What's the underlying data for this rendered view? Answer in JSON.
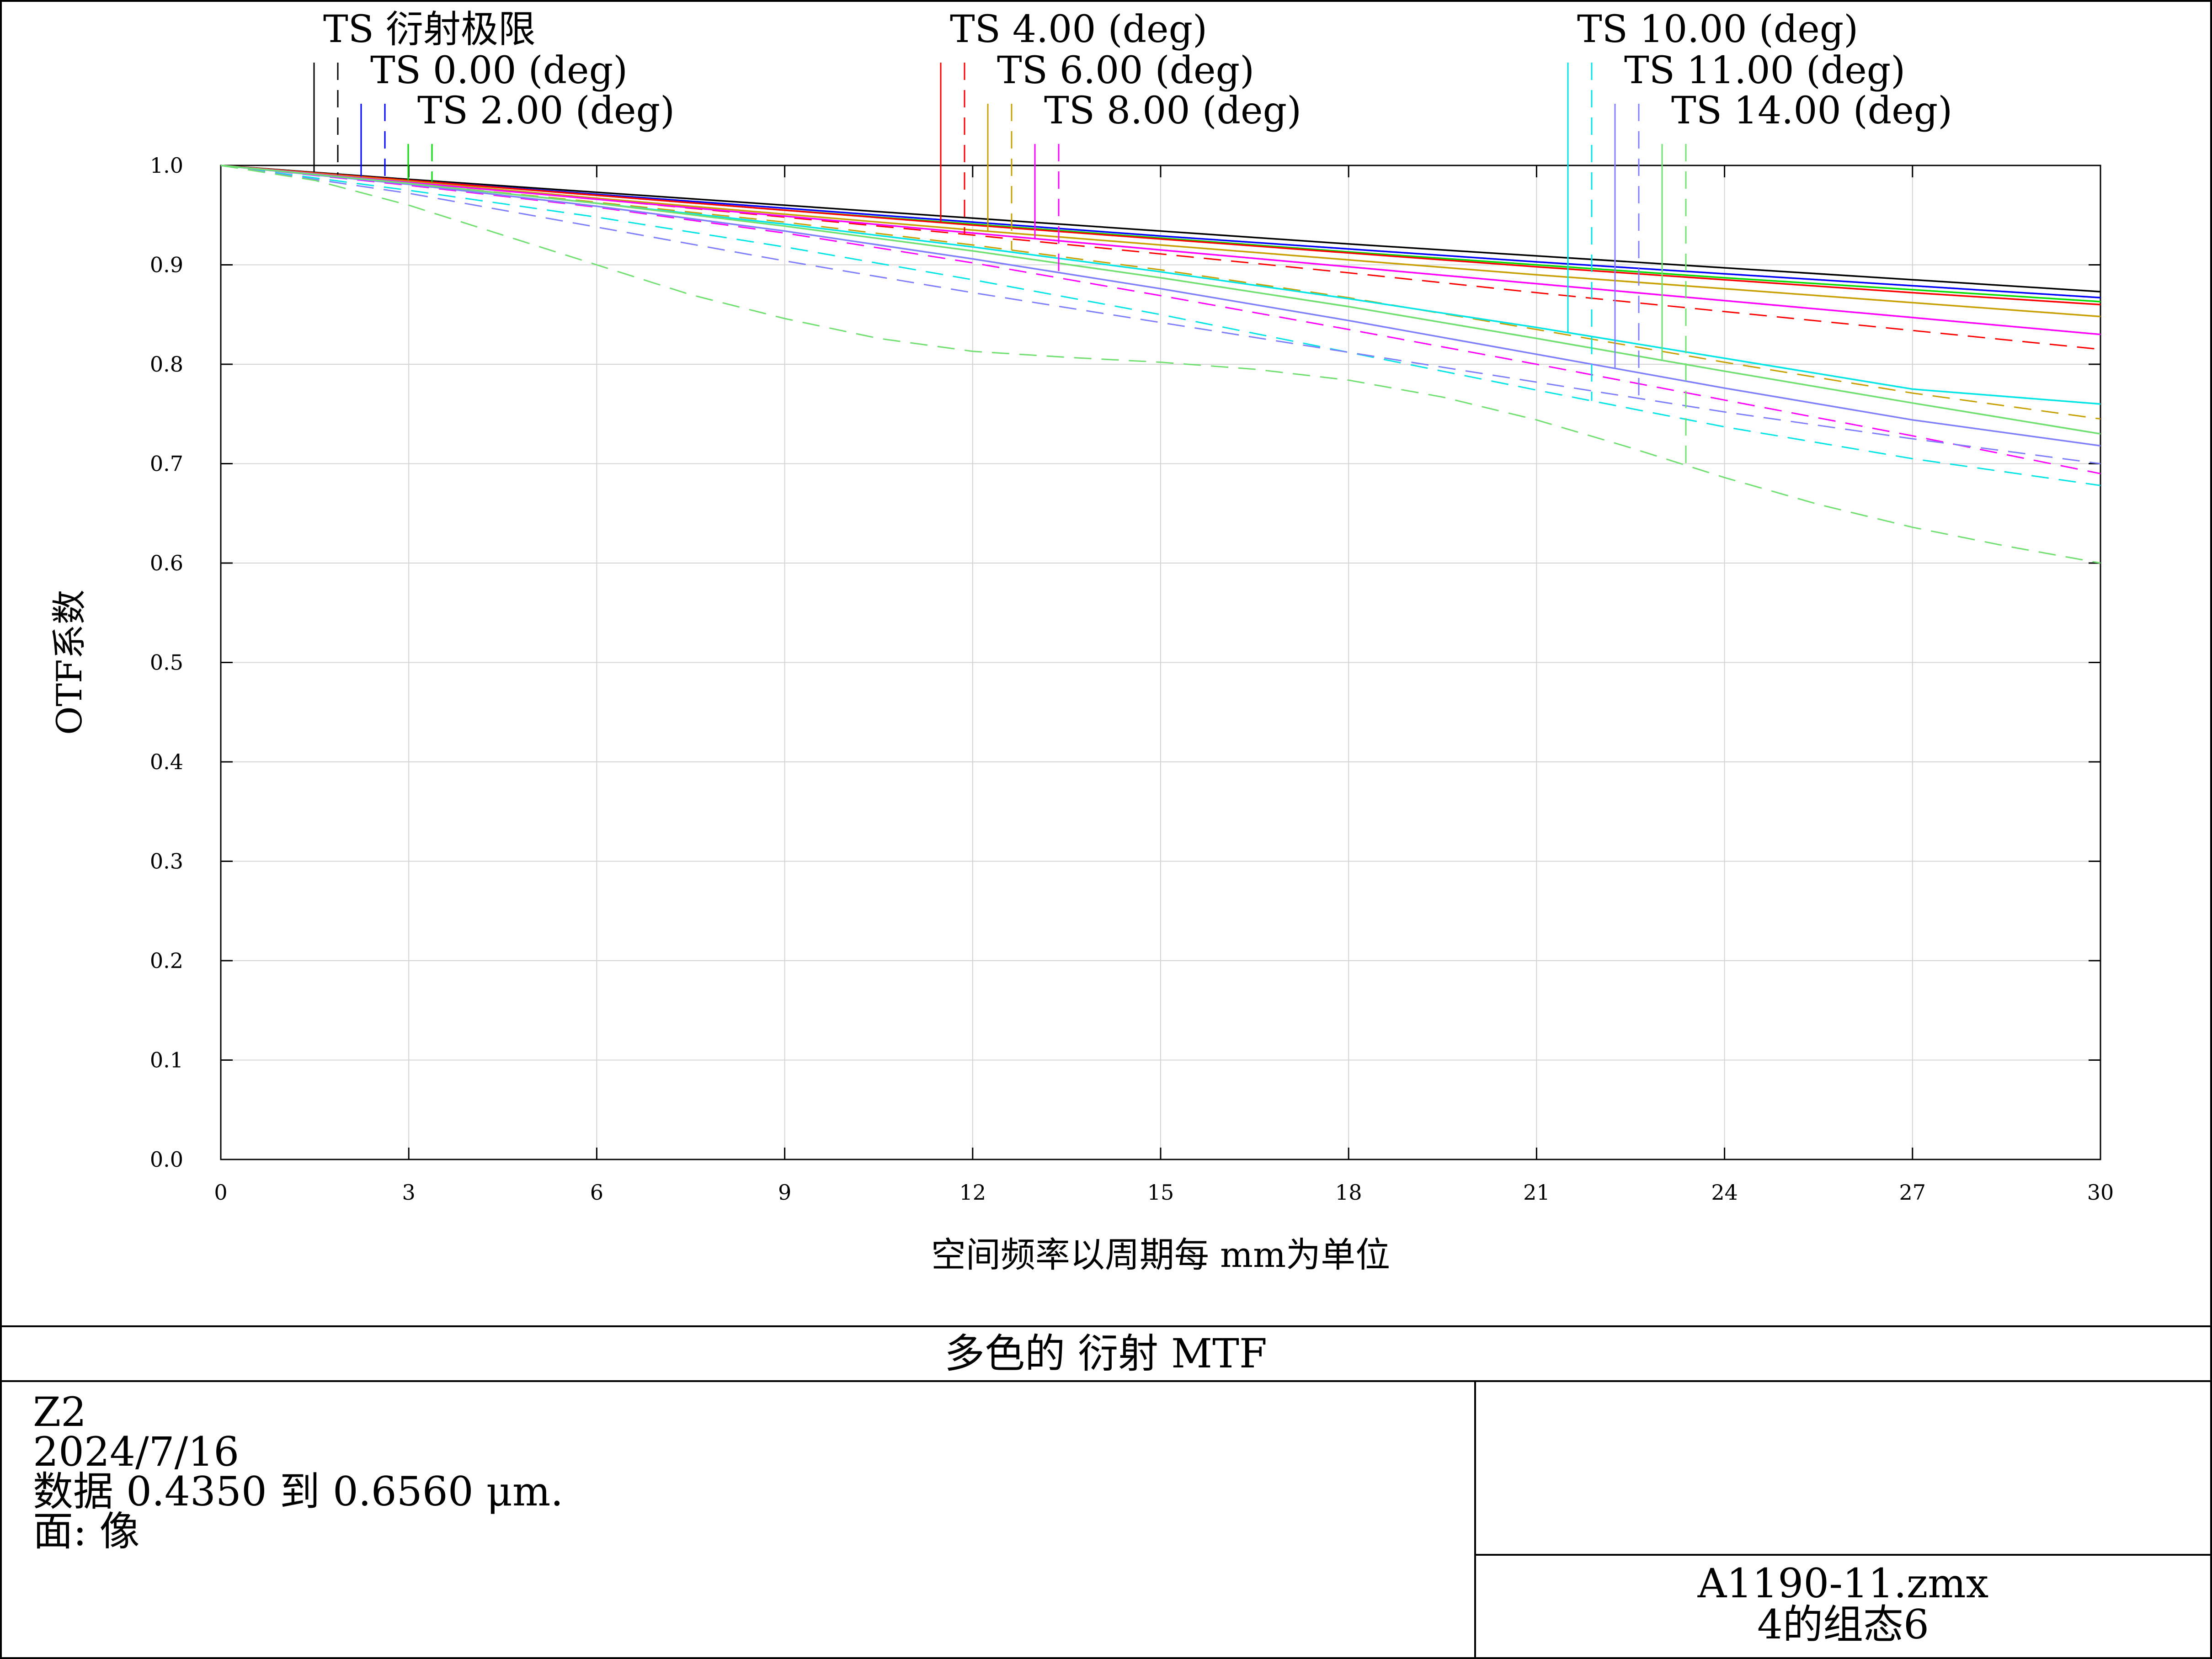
{
  "chart_data": {
    "type": "line",
    "title": "多色的 衍射 MTF",
    "xlabel": "空间频率以周期每 mm为单位",
    "ylabel": "OTF系数",
    "xlim": [
      0,
      30
    ],
    "ylim": [
      0,
      1
    ],
    "xticks": [
      0,
      3,
      6,
      9,
      12,
      15,
      18,
      21,
      24,
      27,
      30
    ],
    "yticks": [
      0,
      0.1,
      0.2,
      0.3,
      0.4,
      0.5,
      0.6,
      0.7,
      0.8,
      0.9,
      1.0
    ],
    "ytick_labels": [
      "0.0",
      "0.1",
      "0.2",
      "0.3",
      "0.4",
      "0.5",
      "0.6",
      "0.7",
      "0.8",
      "0.9",
      "1.0"
    ],
    "grid": true,
    "legend": [
      {
        "label": "TS 衍射极限",
        "color": "#000000"
      },
      {
        "label": "TS 0.00 (deg)",
        "color": "#0000ff"
      },
      {
        "label": "TS 2.00 (deg)",
        "color": "#00dd00"
      },
      {
        "label": "TS 4.00 (deg)",
        "color": "#ff0000"
      },
      {
        "label": "TS 6.00 (deg)",
        "color": "#c8a000"
      },
      {
        "label": "TS 8.00 (deg)",
        "color": "#ff00ff"
      },
      {
        "label": "TS 10.00 (deg)",
        "color": "#00e5e5"
      },
      {
        "label": "TS 11.00 (deg)",
        "color": "#8080ff"
      },
      {
        "label": "TS 14.00 (deg)",
        "color": "#70e070"
      }
    ],
    "series": [
      {
        "field": "TS 衍射极限",
        "orientation": "T",
        "color": "#000000",
        "dash": false,
        "x": [
          0,
          3,
          6,
          9,
          12,
          15,
          18,
          21,
          24,
          27,
          30
        ],
        "values": [
          1.0,
          0.986,
          0.973,
          0.96,
          0.947,
          0.934,
          0.921,
          0.909,
          0.897,
          0.885,
          0.873
        ]
      },
      {
        "field": "TS 衍射极限",
        "orientation": "S",
        "color": "#000000",
        "dash": true,
        "x": [
          0,
          3,
          6,
          9,
          12,
          15,
          18,
          21,
          24,
          27,
          30
        ],
        "values": [
          1.0,
          0.985,
          0.971,
          0.957,
          0.943,
          0.929,
          0.916,
          0.903,
          0.891,
          0.879,
          0.867
        ]
      },
      {
        "field": "TS 0.00 (deg)",
        "orientation": "T",
        "color": "#0000ff",
        "dash": false,
        "x": [
          0,
          3,
          6,
          9,
          12,
          15,
          18,
          21,
          24,
          27,
          30
        ],
        "values": [
          1.0,
          0.985,
          0.971,
          0.957,
          0.943,
          0.929,
          0.916,
          0.903,
          0.891,
          0.879,
          0.867
        ]
      },
      {
        "field": "TS 0.00 (deg)",
        "orientation": "S",
        "color": "#0000ff",
        "dash": true,
        "x": [
          0,
          3,
          6,
          9,
          12,
          15,
          18,
          21,
          24,
          27,
          30
        ],
        "values": [
          1.0,
          0.985,
          0.971,
          0.957,
          0.943,
          0.929,
          0.916,
          0.903,
          0.891,
          0.879,
          0.867
        ]
      },
      {
        "field": "TS 2.00 (deg)",
        "orientation": "T",
        "color": "#00dd00",
        "dash": false,
        "x": [
          0,
          3,
          6,
          9,
          12,
          15,
          18,
          21,
          24,
          27,
          30
        ],
        "values": [
          1.0,
          0.985,
          0.97,
          0.955,
          0.941,
          0.927,
          0.913,
          0.9,
          0.887,
          0.875,
          0.863
        ]
      },
      {
        "field": "TS 2.00 (deg)",
        "orientation": "S",
        "color": "#00dd00",
        "dash": true,
        "x": [
          0,
          3,
          6,
          9,
          12,
          15,
          18,
          21,
          24,
          27,
          30
        ],
        "values": [
          1.0,
          0.985,
          0.97,
          0.955,
          0.94,
          0.926,
          0.912,
          0.898,
          0.885,
          0.872,
          0.86
        ]
      },
      {
        "field": "TS 4.00 (deg)",
        "orientation": "T",
        "color": "#ff0000",
        "dash": false,
        "x": [
          0,
          3,
          6,
          9,
          12,
          15,
          18,
          21,
          24,
          27,
          30
        ],
        "values": [
          1.0,
          0.985,
          0.97,
          0.955,
          0.94,
          0.926,
          0.912,
          0.898,
          0.885,
          0.872,
          0.86
        ]
      },
      {
        "field": "TS 4.00 (deg)",
        "orientation": "S",
        "color": "#ff0000",
        "dash": true,
        "x": [
          0,
          3,
          6,
          9,
          12,
          15,
          18,
          21,
          24,
          27,
          30
        ],
        "values": [
          1.0,
          0.983,
          0.966,
          0.948,
          0.93,
          0.911,
          0.892,
          0.872,
          0.853,
          0.834,
          0.815
        ]
      },
      {
        "field": "TS 6.00 (deg)",
        "orientation": "T",
        "color": "#c8a000",
        "dash": false,
        "x": [
          0,
          3,
          6,
          9,
          12,
          15,
          18,
          21,
          24,
          27,
          30
        ],
        "values": [
          1.0,
          0.984,
          0.967,
          0.951,
          0.935,
          0.92,
          0.905,
          0.89,
          0.876,
          0.862,
          0.848
        ]
      },
      {
        "field": "TS 6.00 (deg)",
        "orientation": "S",
        "color": "#c8a000",
        "dash": true,
        "x": [
          0,
          3,
          6,
          9,
          12,
          15,
          18,
          21,
          24,
          27,
          30
        ],
        "values": [
          1.0,
          0.982,
          0.963,
          0.943,
          0.92,
          0.895,
          0.867,
          0.835,
          0.802,
          0.771,
          0.745
        ]
      },
      {
        "field": "TS 8.00 (deg)",
        "orientation": "T",
        "color": "#ff00ff",
        "dash": false,
        "x": [
          0,
          3,
          6,
          9,
          12,
          15,
          18,
          21,
          24,
          27,
          30
        ],
        "values": [
          1.0,
          0.983,
          0.966,
          0.949,
          0.932,
          0.915,
          0.898,
          0.881,
          0.864,
          0.847,
          0.83
        ]
      },
      {
        "field": "TS 8.00 (deg)",
        "orientation": "S",
        "color": "#ff00ff",
        "dash": true,
        "x": [
          0,
          3,
          6,
          9,
          12,
          15,
          18,
          21,
          24,
          27,
          30
        ],
        "values": [
          1.0,
          0.98,
          0.958,
          0.932,
          0.902,
          0.869,
          0.835,
          0.8,
          0.764,
          0.728,
          0.69
        ]
      },
      {
        "field": "TS 10.00 (deg)",
        "orientation": "T",
        "color": "#00e5e5",
        "dash": false,
        "x": [
          0,
          3,
          6,
          9,
          12,
          15,
          18,
          21,
          24,
          27,
          30
        ],
        "values": [
          1.0,
          0.982,
          0.962,
          0.941,
          0.918,
          0.893,
          0.866,
          0.837,
          0.806,
          0.775,
          0.76
        ]
      },
      {
        "field": "TS 10.00 (deg)",
        "orientation": "S",
        "color": "#00e5e5",
        "dash": true,
        "x": [
          0,
          3,
          6,
          9,
          12,
          15,
          18,
          21,
          24,
          27,
          30
        ],
        "values": [
          1.0,
          0.975,
          0.948,
          0.918,
          0.885,
          0.85,
          0.812,
          0.774,
          0.737,
          0.705,
          0.678
        ]
      },
      {
        "field": "TS 11.00 (deg)",
        "orientation": "T",
        "color": "#8080ff",
        "dash": false,
        "x": [
          0,
          3,
          6,
          9,
          12,
          15,
          18,
          21,
          24,
          27,
          30
        ],
        "values": [
          1.0,
          0.981,
          0.959,
          0.934,
          0.906,
          0.876,
          0.844,
          0.81,
          0.776,
          0.744,
          0.718
        ]
      },
      {
        "field": "TS 11.00 (deg)",
        "orientation": "S",
        "color": "#8080ff",
        "dash": true,
        "x": [
          0,
          3,
          6,
          9,
          12,
          15,
          18,
          21,
          24,
          27,
          30
        ],
        "values": [
          1.0,
          0.972,
          0.938,
          0.904,
          0.872,
          0.842,
          0.812,
          0.782,
          0.752,
          0.725,
          0.7
        ]
      },
      {
        "field": "TS 14.00 (deg)",
        "orientation": "T",
        "color": "#70e070",
        "dash": false,
        "x": [
          0,
          3,
          6,
          9,
          12,
          15,
          18,
          21,
          24,
          27,
          30
        ],
        "values": [
          1.0,
          0.982,
          0.962,
          0.939,
          0.914,
          0.887,
          0.858,
          0.826,
          0.793,
          0.761,
          0.73
        ]
      },
      {
        "field": "TS 14.00 (deg)",
        "orientation": "S",
        "color": "#70e070",
        "dash": true,
        "x": [
          0,
          1.5,
          3,
          4.5,
          6,
          7.5,
          9,
          10.5,
          12,
          13.5,
          15,
          16.5,
          18,
          19.5,
          21,
          22.5,
          24,
          25.5,
          27,
          28.5,
          30
        ],
        "values": [
          1.0,
          0.985,
          0.96,
          0.93,
          0.9,
          0.87,
          0.846,
          0.826,
          0.813,
          0.807,
          0.802,
          0.795,
          0.784,
          0.767,
          0.744,
          0.716,
          0.686,
          0.659,
          0.636,
          0.617,
          0.6
        ]
      }
    ]
  },
  "footer": {
    "title": "多色的 衍射 MTF",
    "lines": [
      "Z2",
      "2024/7/16",
      "数据 0.4350 到 0.6560 μm.",
      "面: 像"
    ],
    "file": "A1190-11.zmx",
    "config": "4的组态6"
  }
}
